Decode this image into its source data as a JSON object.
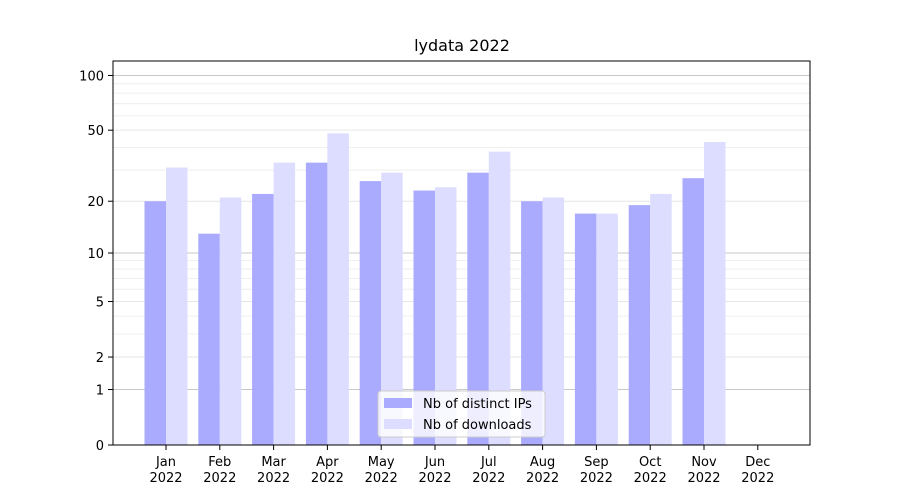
{
  "chart_data": {
    "type": "bar",
    "title": "lydata 2022",
    "xlabel": "",
    "ylabel": "",
    "y_scale": "symlog",
    "ylim": [
      0,
      120
    ],
    "y_ticks": [
      0,
      1,
      2,
      5,
      10,
      20,
      50,
      100
    ],
    "grid": "horizontal",
    "legend_position": "bottom-center",
    "categories": [
      [
        "Jan",
        "2022"
      ],
      [
        "Feb",
        "2022"
      ],
      [
        "Mar",
        "2022"
      ],
      [
        "Apr",
        "2022"
      ],
      [
        "May",
        "2022"
      ],
      [
        "Jun",
        "2022"
      ],
      [
        "Jul",
        "2022"
      ],
      [
        "Aug",
        "2022"
      ],
      [
        "Sep",
        "2022"
      ],
      [
        "Oct",
        "2022"
      ],
      [
        "Nov",
        "2022"
      ],
      [
        "Dec",
        "2022"
      ]
    ],
    "series": [
      {
        "name": "Nb of distinct IPs",
        "color": "#aaaaff",
        "values": [
          20,
          13,
          22,
          33,
          26,
          23,
          29,
          20,
          17,
          19,
          27,
          0
        ]
      },
      {
        "name": "Nb of downloads",
        "color": "#ddddff",
        "values": [
          31,
          21,
          33,
          48,
          29,
          24,
          38,
          21,
          17,
          22,
          43,
          0
        ]
      }
    ]
  }
}
